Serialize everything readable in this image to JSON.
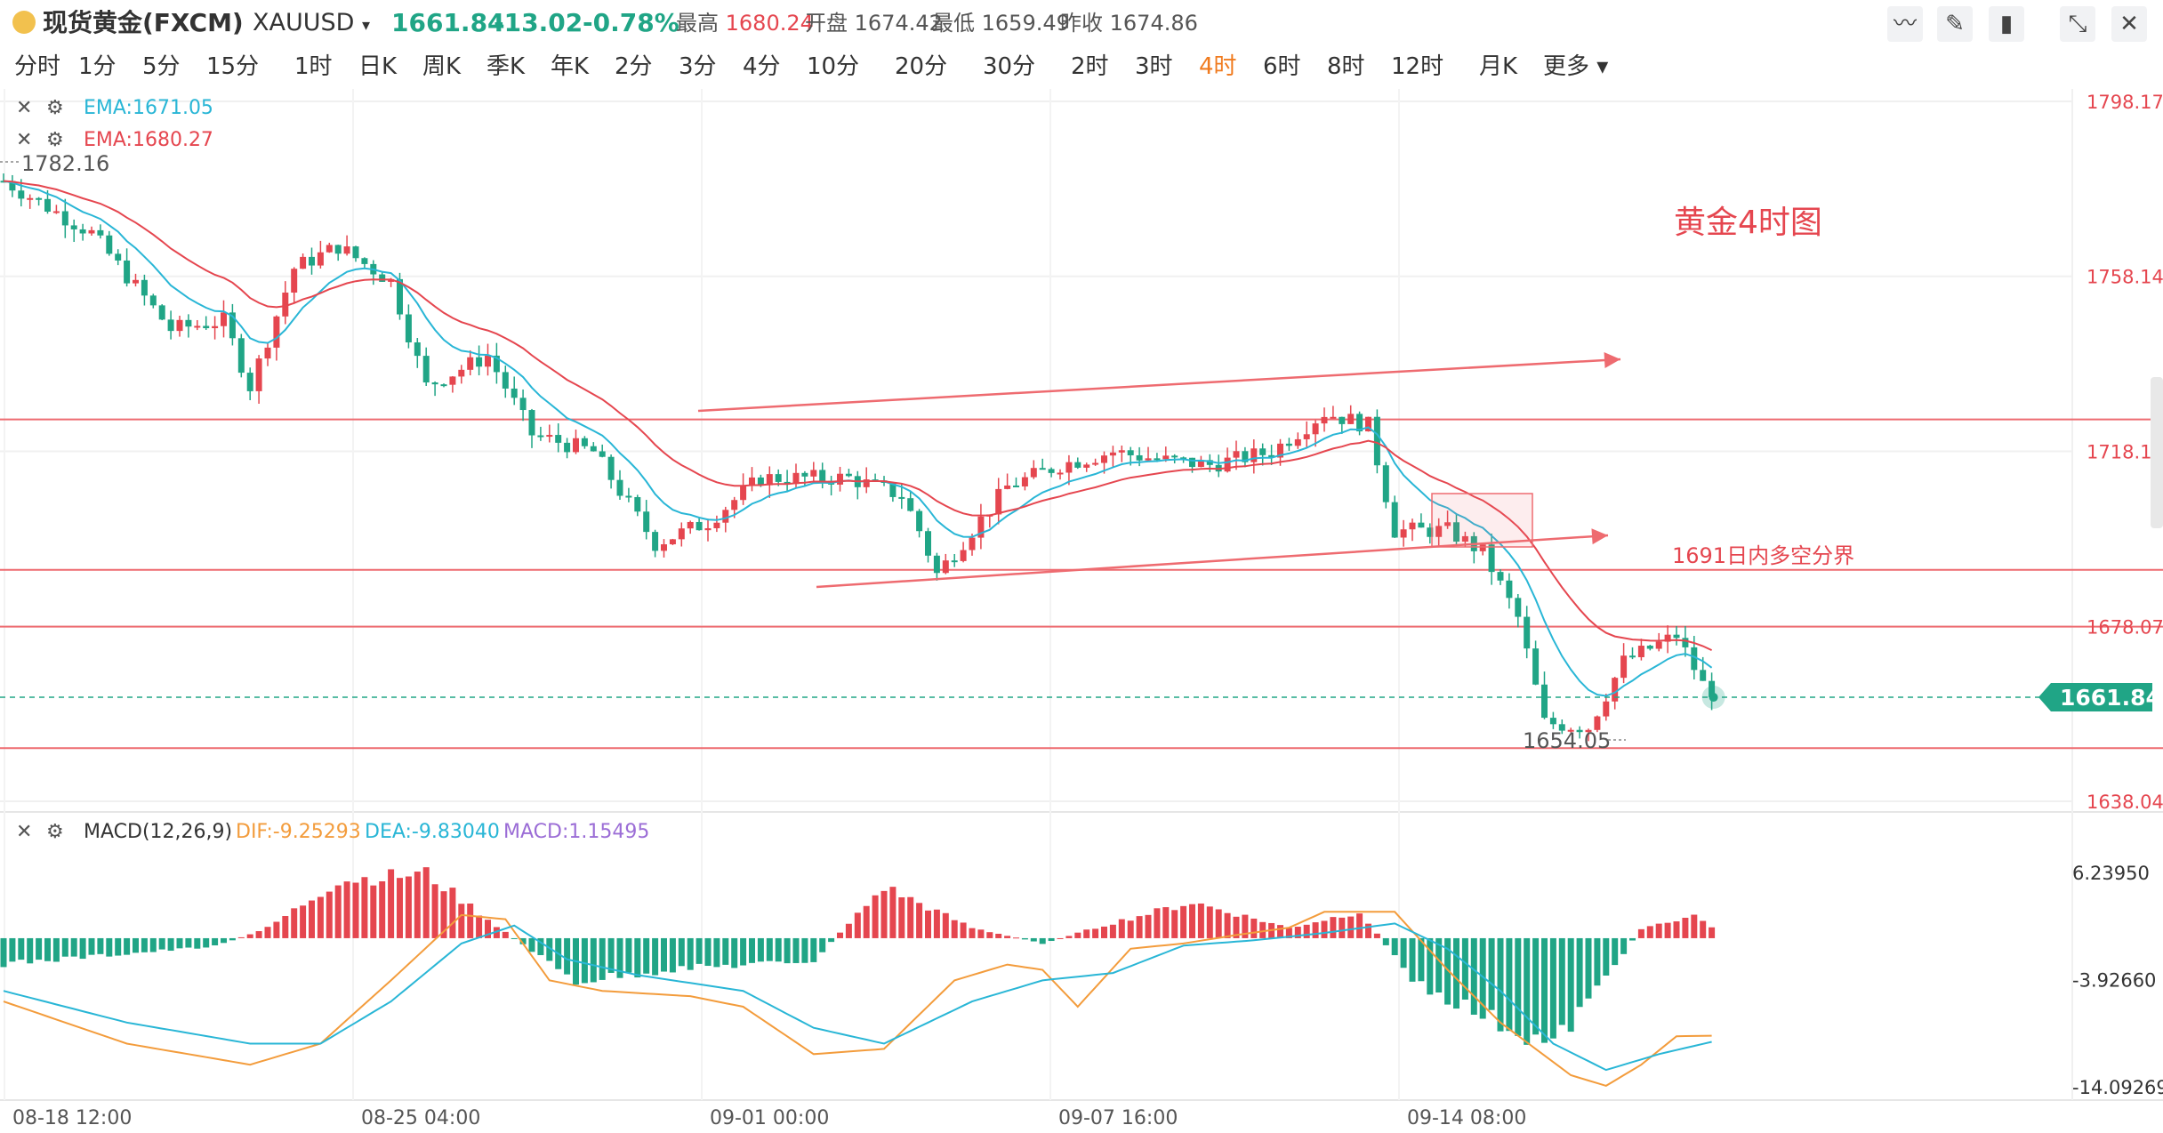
{
  "header": {
    "name": "现货黄金(FXCM)",
    "code": "XAUUSD",
    "price": "1661.84",
    "change": "-13.02",
    "change_pct": "-0.78%",
    "high_label": "最高",
    "high": "1680.24",
    "open_label": "开盘",
    "open": "1674.42",
    "low_label": "最低",
    "low": "1659.49",
    "prev_close_label": "昨收",
    "prev_close": "1674.86"
  },
  "periods": [
    "分时",
    "1分",
    "5分",
    "15分",
    "1时",
    "日K",
    "周K",
    "季K",
    "年K",
    "2分",
    "3分",
    "4分",
    "10分",
    "20分",
    "30分",
    "2时",
    "3时",
    "4时",
    "6时",
    "8时",
    "12时",
    "月K",
    "更多"
  ],
  "active_period": "4时",
  "tools": [
    "line-chart-icon",
    "pencil-icon",
    "candle-icon",
    "expand-icon",
    "close-icon"
  ],
  "indicators": {
    "ema1": "EMA:1671.05",
    "ema2": "EMA:1680.27",
    "macd_name": "MACD(12,26,9)",
    "dif": "DIF:-9.25293",
    "dea": "DEA:-9.83040",
    "macd": "MACD:1.15495"
  },
  "annotations": {
    "title": "黄金4时图",
    "boundary": "1691日内多空分界",
    "high_mark": "1782.16",
    "low_mark": "1654.05",
    "current_price": "1661.84"
  },
  "colors": {
    "up": "#e5464f",
    "down": "#20a586",
    "ema_fast": "#29b6d6",
    "ema_slow": "#e5464f",
    "dif": "#f39c3c",
    "dea": "#29b6d6",
    "macd_label": "#9b6dd6",
    "active": "#f07b1f"
  },
  "chart_data": {
    "type": "candlestick",
    "price_axis_ticks": [
      1798.17,
      1758.14,
      1718.1,
      1678.07,
      1638.04
    ],
    "macd_axis_ticks": [
      "6.23950",
      "-3.92660",
      "-14.09269"
    ],
    "x_ticks": [
      "08-18 12:00",
      "08-25 04:00",
      "09-01 00:00",
      "09-07 16:00",
      "09-14 08:00"
    ],
    "horizontal_lines": [
      1725.4,
      1691.0,
      1678.0,
      1650.2
    ],
    "current_price": 1661.84,
    "ema_fast_last": 1671.05,
    "ema_slow_last": 1680.27,
    "price_keypoints": [
      [
        0,
        1780
      ],
      [
        10,
        1768
      ],
      [
        19,
        1746
      ],
      [
        25,
        1748
      ],
      [
        28,
        1733
      ],
      [
        33,
        1760
      ],
      [
        38,
        1765
      ],
      [
        44,
        1757
      ],
      [
        48,
        1733
      ],
      [
        55,
        1740
      ],
      [
        60,
        1722
      ],
      [
        67,
        1718
      ],
      [
        74,
        1697
      ],
      [
        80,
        1702
      ],
      [
        86,
        1712
      ],
      [
        96,
        1712
      ],
      [
        102,
        1708
      ],
      [
        104,
        1700
      ],
      [
        106,
        1690
      ],
      [
        110,
        1700
      ],
      [
        114,
        1710
      ],
      [
        120,
        1715
      ],
      [
        126,
        1718
      ],
      [
        132,
        1716
      ],
      [
        137,
        1715
      ],
      [
        144,
        1718
      ],
      [
        150,
        1727
      ],
      [
        155,
        1724
      ],
      [
        158,
        1700
      ],
      [
        164,
        1700
      ],
      [
        168,
        1695
      ],
      [
        172,
        1680
      ],
      [
        175,
        1656
      ],
      [
        180,
        1655
      ],
      [
        184,
        1670
      ],
      [
        190,
        1676
      ],
      [
        194,
        1661
      ]
    ],
    "macd_keypoints": [
      [
        0,
        -2.5
      ],
      [
        14,
        -1.5
      ],
      [
        24,
        -0.8
      ],
      [
        30,
        1.0
      ],
      [
        38,
        5.6
      ],
      [
        48,
        6.3
      ],
      [
        56,
        1.2
      ],
      [
        65,
        -4.2
      ],
      [
        76,
        -3.0
      ],
      [
        92,
        -2.2
      ],
      [
        100,
        5.0
      ],
      [
        110,
        1.0
      ],
      [
        118,
        -0.5
      ],
      [
        126,
        1.5
      ],
      [
        135,
        3.5
      ],
      [
        146,
        1.0
      ],
      [
        154,
        2.6
      ],
      [
        160,
        -4.0
      ],
      [
        168,
        -7.5
      ],
      [
        176,
        -10.5
      ],
      [
        181,
        -5.0
      ],
      [
        186,
        1.0
      ],
      [
        192,
        2.2
      ],
      [
        194,
        1.15
      ]
    ],
    "dif_keypoints": [
      [
        0,
        -6
      ],
      [
        14,
        -10
      ],
      [
        28,
        -12
      ],
      [
        36,
        -10
      ],
      [
        44,
        -4
      ],
      [
        52,
        2.2
      ],
      [
        57,
        1.8
      ],
      [
        62,
        -4
      ],
      [
        68,
        -5
      ],
      [
        78,
        -5.5
      ],
      [
        84,
        -6.5
      ],
      [
        92,
        -11
      ],
      [
        100,
        -10.5
      ],
      [
        108,
        -4
      ],
      [
        114,
        -2.5
      ],
      [
        118,
        -3
      ],
      [
        122,
        -6.5
      ],
      [
        128,
        -1
      ],
      [
        134,
        -0.5
      ],
      [
        140,
        0.3
      ],
      [
        146,
        1
      ],
      [
        150,
        2.5
      ],
      [
        158,
        2.5
      ],
      [
        164,
        -3
      ],
      [
        170,
        -8
      ],
      [
        178,
        -13
      ],
      [
        182,
        -14
      ],
      [
        186,
        -12
      ],
      [
        190,
        -9.3
      ],
      [
        194,
        -9.25
      ]
    ],
    "dea_keypoints": [
      [
        0,
        -5
      ],
      [
        14,
        -8
      ],
      [
        28,
        -10
      ],
      [
        36,
        -10
      ],
      [
        44,
        -6
      ],
      [
        52,
        -0.5
      ],
      [
        58,
        1.2
      ],
      [
        64,
        -2
      ],
      [
        72,
        -3.5
      ],
      [
        84,
        -5
      ],
      [
        92,
        -8.5
      ],
      [
        100,
        -10
      ],
      [
        110,
        -6
      ],
      [
        118,
        -4
      ],
      [
        126,
        -3.3
      ],
      [
        134,
        -0.7
      ],
      [
        142,
        -0.2
      ],
      [
        150,
        0.5
      ],
      [
        158,
        1.4
      ],
      [
        164,
        -1
      ],
      [
        170,
        -5
      ],
      [
        176,
        -10
      ],
      [
        182,
        -12.5
      ],
      [
        188,
        -11
      ],
      [
        194,
        -9.83
      ]
    ]
  }
}
